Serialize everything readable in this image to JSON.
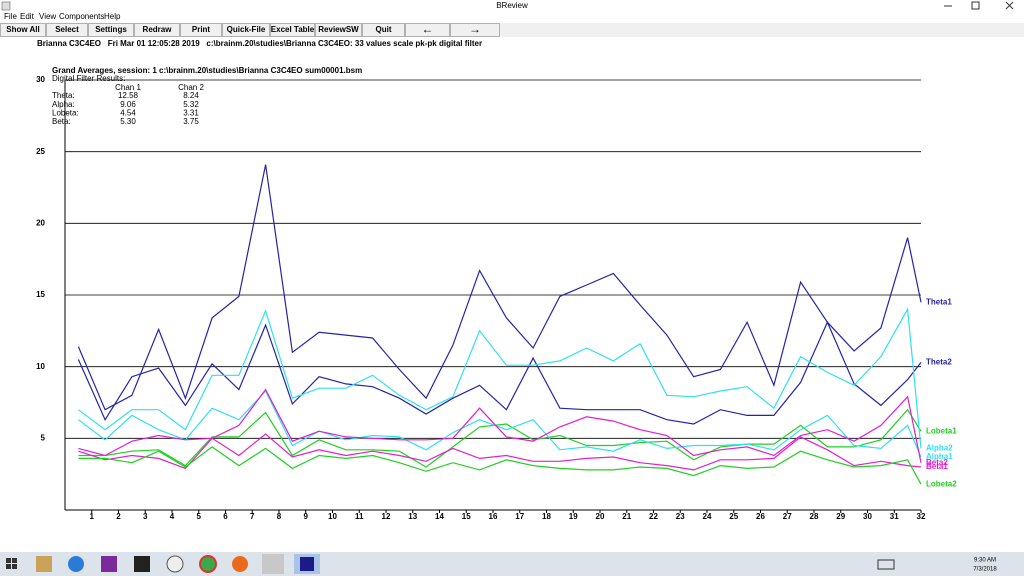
{
  "window": {
    "title": "BReview"
  },
  "menu": [
    "File",
    "Edit",
    "View",
    "Components",
    "Help"
  ],
  "toolbar": [
    "Show All",
    "Select",
    "Settings",
    "Redraw",
    "Print",
    "Quick-File",
    "Excel Table",
    "ReviewSW",
    "Quit",
    "←",
    "→"
  ],
  "info_line": "Brianna C3C4EO   Fri Mar 01 12:05:28 2019   c:\\brainm.20\\studies\\Brianna C3C4EO: 33 values scale pk-pk digital filter",
  "results": {
    "title": "Digital Filter Results:",
    "columns": [
      "Chan 1",
      "Chan 2"
    ],
    "rows": [
      [
        "Theta:",
        "12.58",
        "8.24"
      ],
      [
        "Alpha:",
        "9.06",
        "5.32"
      ],
      [
        "Lobeta:",
        "4.54",
        "3.31"
      ],
      [
        "Beta:",
        "5.30",
        "3.75"
      ]
    ]
  },
  "chart_data": {
    "type": "line",
    "title": "Grand Averages, session: 1 c:\\brainm.20\\studies\\Brianna C3C4EO sum00001.bsm",
    "x": [
      0.5,
      1.5,
      2.5,
      3.5,
      4.5,
      5.5,
      6.5,
      7.5,
      8.5,
      9.5,
      10.5,
      11.5,
      12.5,
      13.5,
      14.5,
      15.5,
      16.5,
      17.5,
      18.5,
      19.5,
      20.5,
      21.5,
      22.5,
      23.5,
      24.5,
      25.5,
      26.5,
      27.5,
      28.5,
      29.5,
      30.5,
      31.5,
      32
    ],
    "xlim": [
      0,
      32
    ],
    "xticks": [
      1,
      2,
      3,
      4,
      5,
      6,
      7,
      8,
      9,
      10,
      11,
      12,
      13,
      14,
      15,
      16,
      17,
      18,
      19,
      20,
      21,
      22,
      23,
      24,
      25,
      26,
      27,
      28,
      29,
      30,
      31,
      32
    ],
    "ylim": [
      0,
      30
    ],
    "yticks": [
      5,
      10,
      15,
      20,
      25,
      30
    ],
    "grid": true,
    "series": [
      {
        "name": "Theta1",
        "color": "#2424a8",
        "values": [
          11.4,
          7.0,
          8.0,
          12.6,
          7.8,
          13.4,
          14.9,
          24.1,
          11.0,
          12.4,
          12.2,
          12.0,
          9.8,
          7.8,
          11.5,
          16.7,
          13.4,
          11.3,
          14.9,
          15.7,
          16.5,
          14.3,
          12.2,
          9.3,
          9.8,
          13.1,
          8.7,
          15.9,
          13.1,
          11.1,
          12.7,
          19.0,
          14.5
        ]
      },
      {
        "name": "Theta2",
        "color": "#2424a8",
        "values": [
          10.5,
          6.3,
          9.3,
          9.9,
          7.3,
          10.2,
          8.4,
          12.9,
          7.4,
          9.3,
          8.8,
          8.6,
          7.8,
          6.7,
          7.8,
          8.7,
          7.0,
          10.6,
          7.1,
          7.0,
          7.0,
          7.0,
          6.3,
          6.0,
          7.0,
          6.6,
          6.6,
          8.9,
          13.1,
          8.8,
          7.3,
          9.1,
          10.3
        ]
      },
      {
        "name": "Lobeta1",
        "color": "#22d022",
        "values": [
          3.8,
          3.8,
          4.1,
          4.2,
          3.1,
          5.1,
          5.1,
          6.8,
          3.8,
          4.9,
          4.2,
          4.2,
          4.1,
          3.0,
          4.4,
          5.8,
          6.0,
          4.9,
          5.2,
          4.5,
          4.5,
          4.7,
          4.8,
          3.5,
          4.4,
          4.6,
          4.6,
          5.9,
          4.4,
          4.4,
          4.9,
          7.0,
          5.5
        ]
      },
      {
        "name": "Alpha2",
        "color": "#30e0f0",
        "values": [
          7.0,
          5.6,
          7.0,
          7.0,
          5.6,
          9.4,
          9.4,
          13.9,
          7.8,
          8.5,
          8.5,
          9.4,
          8.0,
          7.0,
          7.9,
          12.5,
          10.1,
          10.1,
          10.4,
          11.3,
          10.4,
          11.6,
          8.0,
          7.9,
          8.3,
          8.6,
          7.1,
          10.7,
          9.6,
          8.7,
          10.7,
          14.0,
          4.3
        ]
      },
      {
        "name": "Alpha1",
        "color": "#30e0f0",
        "values": [
          6.3,
          4.9,
          6.6,
          5.6,
          4.9,
          7.1,
          6.3,
          8.3,
          4.5,
          5.5,
          4.9,
          5.2,
          5.1,
          4.2,
          5.4,
          6.3,
          5.6,
          6.3,
          4.2,
          4.4,
          4.1,
          4.9,
          4.3,
          4.5,
          4.5,
          4.6,
          4.2,
          5.6,
          6.6,
          4.5,
          4.3,
          5.9,
          3.7
        ]
      },
      {
        "name": "Beta2",
        "color": "#e020d0",
        "values": [
          4.3,
          3.8,
          4.8,
          5.2,
          4.9,
          5.0,
          5.9,
          8.4,
          4.8,
          5.5,
          5.1,
          5.0,
          4.9,
          4.9,
          5.0,
          7.1,
          5.1,
          4.8,
          5.8,
          6.5,
          6.2,
          5.6,
          5.2,
          3.8,
          4.2,
          4.4,
          3.8,
          5.2,
          5.6,
          4.8,
          5.9,
          7.9,
          3.3
        ]
      },
      {
        "name": "Beta1",
        "color": "#e020d0",
        "values": [
          4.1,
          3.5,
          3.8,
          3.6,
          2.9,
          5.0,
          3.8,
          5.3,
          3.7,
          4.2,
          3.8,
          4.1,
          3.8,
          3.4,
          4.3,
          3.6,
          3.8,
          3.4,
          3.4,
          3.6,
          3.7,
          3.3,
          3.1,
          2.8,
          3.5,
          3.5,
          3.6,
          5.1,
          4.2,
          3.1,
          3.4,
          3.1,
          3.0
        ]
      },
      {
        "name": "Lobeta2",
        "color": "#22d022",
        "values": [
          3.6,
          3.6,
          3.3,
          4.1,
          3.0,
          4.4,
          3.1,
          4.3,
          2.9,
          3.8,
          3.6,
          3.8,
          3.3,
          2.7,
          3.3,
          2.8,
          3.5,
          3.1,
          2.9,
          2.8,
          2.8,
          3.0,
          2.9,
          2.4,
          3.1,
          2.9,
          3.0,
          4.1,
          3.5,
          3.0,
          3.1,
          3.5,
          1.8
        ]
      }
    ]
  },
  "taskbar": {
    "time": "9:30 AM",
    "date": "7/3/2018"
  }
}
